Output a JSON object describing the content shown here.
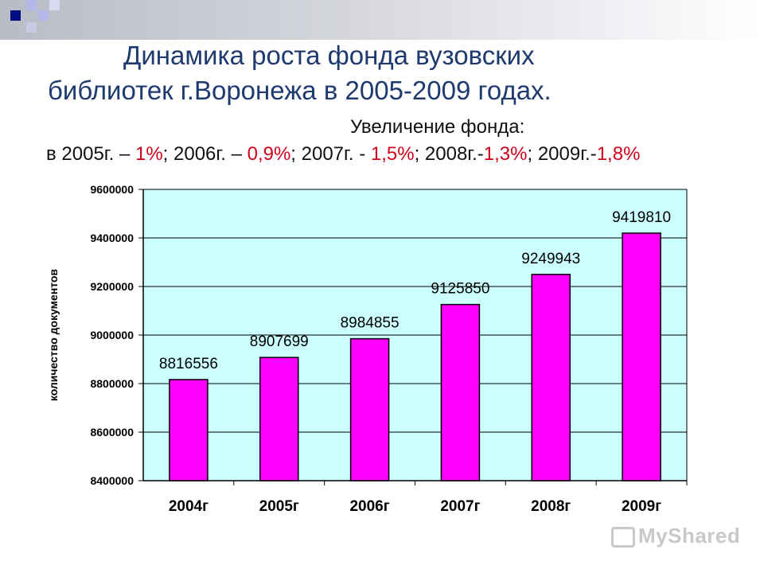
{
  "slide": {
    "title_line1": "Динамика роста фонда вузовских",
    "title_line2": "библиотек г.Воронежа в 2005-2009 годах.",
    "subtitle": "Увеличение фонда:",
    "growth": [
      {
        "prefix": "в 2005г. – ",
        "pct": "1%",
        "suffix": "; "
      },
      {
        "prefix": "2006г. – ",
        "pct": "0,9%",
        "suffix": "; "
      },
      {
        "prefix": "2007г. - ",
        "pct": "1,5%",
        "suffix": "; "
      },
      {
        "prefix": "2008г.-",
        "pct": "1,3%",
        "suffix": "; "
      },
      {
        "prefix": "2009г.-",
        "pct": "1,8%",
        "suffix": ""
      }
    ],
    "watermark": "MyShared"
  },
  "colors": {
    "plot_bg": "#ccffff",
    "bar": "#ff00ff",
    "bar_stroke": "#000000",
    "grid": "#000000",
    "accent_red": "#d0021b",
    "title_blue": "#1f3a6e"
  },
  "chart_data": {
    "type": "bar",
    "categories": [
      "2004г",
      "2005г",
      "2006г",
      "2007г",
      "2008г",
      "2009г"
    ],
    "values": [
      8816556,
      8907699,
      8984855,
      9125850,
      9249943,
      9419810
    ],
    "data_labels": [
      "8816556",
      "8907699",
      "8984855",
      "9125850",
      "9249943",
      "9419810"
    ],
    "ylabel": "количество документов",
    "ylim": [
      8400000,
      9600000
    ],
    "yticks": [
      8400000,
      8600000,
      8800000,
      9000000,
      9200000,
      9400000,
      9600000
    ],
    "ytick_labels": [
      "8400000",
      "8600000",
      "8800000",
      "9000000",
      "9200000",
      "9400000",
      "9600000"
    ],
    "grid": true,
    "legend": "none"
  }
}
